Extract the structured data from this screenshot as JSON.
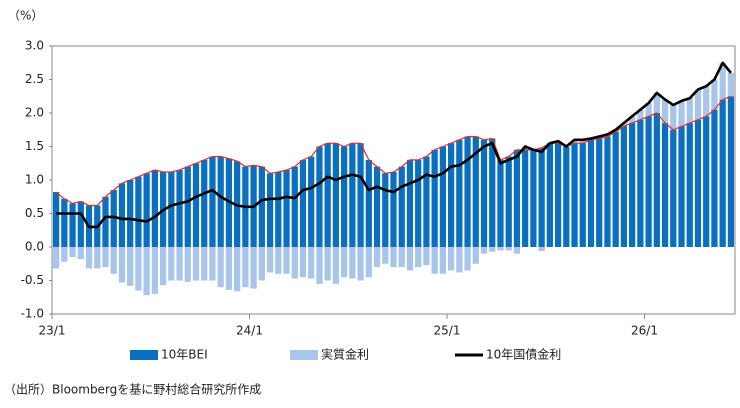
{
  "chart_data": {
    "type": "bar",
    "stacked": true,
    "y_label": "（%）",
    "source": "（出所）Bloombergを基に野村総合研究所作成",
    "categories": [
      "23/1",
      null,
      null,
      null,
      null,
      null,
      null,
      null,
      null,
      null,
      null,
      null,
      null,
      null,
      null,
      null,
      null,
      null,
      null,
      null,
      null,
      null,
      null,
      null,
      "24/1",
      null,
      null,
      null,
      null,
      null,
      null,
      null,
      null,
      null,
      null,
      null,
      null,
      null,
      null,
      null,
      null,
      null,
      null,
      null,
      null,
      null,
      null,
      null,
      "25/1",
      null,
      null,
      null,
      null,
      null,
      null,
      null,
      null,
      null,
      null,
      null,
      null,
      null,
      null,
      null,
      null,
      null,
      null,
      null,
      null,
      null,
      null,
      null,
      "26/1",
      null,
      null,
      null,
      null,
      null,
      null,
      null,
      null,
      null,
      null
    ],
    "series": [
      {
        "name": "10年BEI",
        "type": "bar",
        "color": "#0a6fbf",
        "outline_color": "#e0302a",
        "values": [
          0.82,
          0.72,
          0.65,
          0.68,
          0.62,
          0.62,
          0.75,
          0.85,
          0.95,
          1.0,
          1.05,
          1.1,
          1.15,
          1.12,
          1.12,
          1.15,
          1.2,
          1.25,
          1.3,
          1.35,
          1.35,
          1.32,
          1.28,
          1.2,
          1.22,
          1.2,
          1.1,
          1.12,
          1.15,
          1.2,
          1.3,
          1.35,
          1.5,
          1.55,
          1.55,
          1.5,
          1.55,
          1.55,
          1.3,
          1.2,
          1.1,
          1.12,
          1.2,
          1.3,
          1.3,
          1.35,
          1.45,
          1.5,
          1.55,
          1.6,
          1.65,
          1.65,
          1.6,
          1.62,
          1.3,
          1.35,
          1.45,
          1.45,
          1.45,
          1.48,
          1.55,
          1.55,
          1.5,
          1.55,
          1.55,
          1.6,
          1.62,
          1.65,
          1.72,
          1.8,
          1.85,
          1.9,
          1.95,
          2.0,
          1.85,
          1.75,
          1.8,
          1.85,
          1.9,
          1.95,
          2.05,
          2.2,
          2.25
        ]
      },
      {
        "name": "実質金利",
        "type": "bar",
        "color": "#a9c6ea",
        "values": [
          -0.32,
          -0.22,
          -0.15,
          -0.18,
          -0.32,
          -0.32,
          -0.3,
          -0.4,
          -0.53,
          -0.58,
          -0.65,
          -0.72,
          -0.7,
          -0.57,
          -0.5,
          -0.5,
          -0.52,
          -0.5,
          -0.5,
          -0.5,
          -0.6,
          -0.64,
          -0.66,
          -0.6,
          -0.62,
          -0.5,
          -0.38,
          -0.4,
          -0.4,
          -0.47,
          -0.45,
          -0.47,
          -0.55,
          -0.5,
          -0.55,
          -0.45,
          -0.47,
          -0.5,
          -0.45,
          -0.3,
          -0.25,
          -0.3,
          -0.3,
          -0.35,
          -0.3,
          -0.27,
          -0.4,
          -0.4,
          -0.35,
          -0.38,
          -0.35,
          -0.25,
          -0.1,
          -0.07,
          -0.05,
          -0.05,
          -0.1,
          0.05,
          0.0,
          -0.06,
          0.0,
          0.03,
          0.0,
          0.05,
          0.05,
          0.02,
          0.03,
          0.03,
          0.03,
          0.05,
          0.1,
          0.15,
          0.2,
          0.3,
          0.35,
          0.37,
          0.38,
          0.37,
          0.45,
          0.45,
          0.45,
          0.55,
          0.35
        ]
      },
      {
        "name": "10年国債金利",
        "type": "line",
        "color": "#000000",
        "values": [
          0.5,
          0.5,
          0.5,
          0.5,
          0.3,
          0.3,
          0.45,
          0.45,
          0.42,
          0.42,
          0.4,
          0.38,
          0.45,
          0.55,
          0.62,
          0.65,
          0.68,
          0.75,
          0.8,
          0.85,
          0.75,
          0.68,
          0.62,
          0.6,
          0.6,
          0.7,
          0.72,
          0.72,
          0.75,
          0.73,
          0.85,
          0.88,
          0.95,
          1.05,
          1.0,
          1.05,
          1.08,
          1.05,
          0.85,
          0.9,
          0.85,
          0.82,
          0.9,
          0.95,
          1.0,
          1.08,
          1.05,
          1.1,
          1.2,
          1.22,
          1.3,
          1.4,
          1.5,
          1.55,
          1.25,
          1.3,
          1.35,
          1.5,
          1.45,
          1.42,
          1.55,
          1.58,
          1.5,
          1.6,
          1.6,
          1.62,
          1.65,
          1.68,
          1.75,
          1.85,
          1.95,
          2.05,
          2.15,
          2.3,
          2.2,
          2.12,
          2.18,
          2.22,
          2.35,
          2.4,
          2.5,
          2.75,
          2.6
        ]
      }
    ],
    "ylim": [
      -1,
      3
    ],
    "yticks": [
      {
        "value": 3,
        "label": "3.0"
      },
      2.5,
      {
        "value": 2,
        "label": "2.0"
      },
      1.5,
      {
        "value": 1,
        "label": "1.0"
      },
      0.5,
      {
        "value": 0,
        "label": "0.0"
      },
      -0.5,
      {
        "value": -1,
        "label": "-1.0"
      }
    ],
    "grid": false
  }
}
